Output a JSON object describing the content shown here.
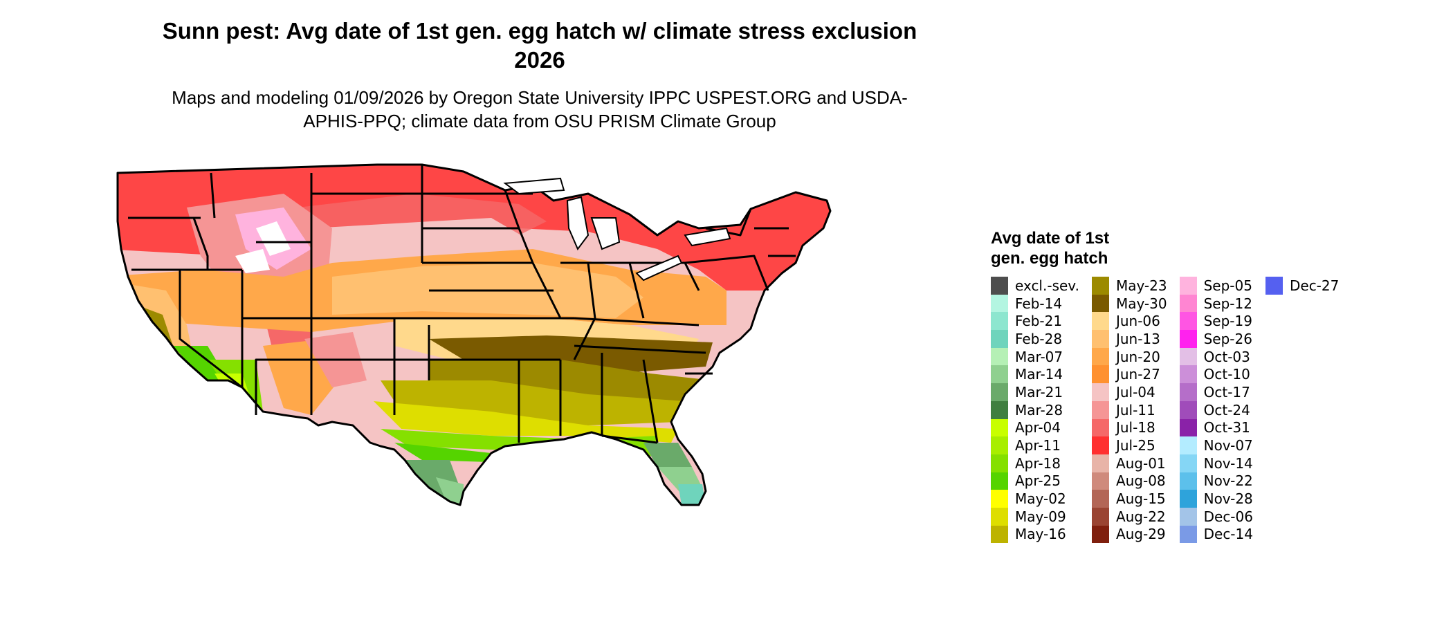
{
  "title": "Sunn pest: Avg date of 1st gen. egg hatch w/ climate stress exclusion 2026",
  "subtitle": "Maps and modeling 01/09/2026 by Oregon State University IPPC USPEST.ORG and USDA-APHIS-PPQ; climate data from OSU PRISM Climate Group",
  "legend": {
    "title": "Avg date of 1st\ngen. egg hatch",
    "columns": [
      [
        {
          "label": "excl.-sev.",
          "color": "#4d4d4d"
        },
        {
          "label": "Feb-14",
          "color": "#b3f5e1"
        },
        {
          "label": "Feb-21",
          "color": "#8de6cf"
        },
        {
          "label": "Feb-28",
          "color": "#6fd4bc"
        },
        {
          "label": "Mar-07",
          "color": "#b5f0b5"
        },
        {
          "label": "Mar-14",
          "color": "#8fd08f"
        },
        {
          "label": "Mar-21",
          "color": "#6aaa6a"
        },
        {
          "label": "Mar-28",
          "color": "#3f7f3f"
        },
        {
          "label": "Apr-04",
          "color": "#c8ff00"
        },
        {
          "label": "Apr-11",
          "color": "#a8ee00"
        },
        {
          "label": "Apr-18",
          "color": "#85e000"
        },
        {
          "label": "Apr-25",
          "color": "#55d400"
        },
        {
          "label": "May-02",
          "color": "#ffff00"
        },
        {
          "label": "May-09",
          "color": "#dede00"
        },
        {
          "label": "May-16",
          "color": "#bdb300"
        }
      ],
      [
        {
          "label": "May-23",
          "color": "#9c8a00"
        },
        {
          "label": "May-30",
          "color": "#7a5a00"
        },
        {
          "label": "Jun-06",
          "color": "#ffd98c"
        },
        {
          "label": "Jun-13",
          "color": "#ffc070"
        },
        {
          "label": "Jun-20",
          "color": "#ffa84a"
        },
        {
          "label": "Jun-27",
          "color": "#ff9130"
        },
        {
          "label": "Jul-04",
          "color": "#f5c4c4"
        },
        {
          "label": "Jul-11",
          "color": "#f59595"
        },
        {
          "label": "Jul-18",
          "color": "#f56868"
        },
        {
          "label": "Jul-25",
          "color": "#ff3030"
        },
        {
          "label": "Aug-01",
          "color": "#e8b4a8"
        },
        {
          "label": "Aug-08",
          "color": "#cf8a7c"
        },
        {
          "label": "Aug-15",
          "color": "#b36656"
        },
        {
          "label": "Aug-22",
          "color": "#9a4432"
        },
        {
          "label": "Aug-29",
          "color": "#7f1f0e"
        }
      ],
      [
        {
          "label": "Sep-05",
          "color": "#ffb3de"
        },
        {
          "label": "Sep-12",
          "color": "#ff85d2"
        },
        {
          "label": "Sep-19",
          "color": "#ff55e3"
        },
        {
          "label": "Sep-26",
          "color": "#ff22ee"
        },
        {
          "label": "Oct-03",
          "color": "#e3bfe6"
        },
        {
          "label": "Oct-10",
          "color": "#cc8fd9"
        },
        {
          "label": "Oct-17",
          "color": "#b56ec9"
        },
        {
          "label": "Oct-24",
          "color": "#a04cba"
        },
        {
          "label": "Oct-31",
          "color": "#8a22a8"
        },
        {
          "label": "Nov-07",
          "color": "#b3ecff"
        },
        {
          "label": "Nov-14",
          "color": "#85d6f5"
        },
        {
          "label": "Nov-22",
          "color": "#5cc0eb"
        },
        {
          "label": "Nov-28",
          "color": "#2ea3db"
        },
        {
          "label": "Dec-06",
          "color": "#a3c4e8"
        },
        {
          "label": "Dec-14",
          "color": "#7a9ae6"
        }
      ],
      [
        {
          "label": "Dec-27",
          "color": "#5560f0"
        }
      ]
    ]
  }
}
